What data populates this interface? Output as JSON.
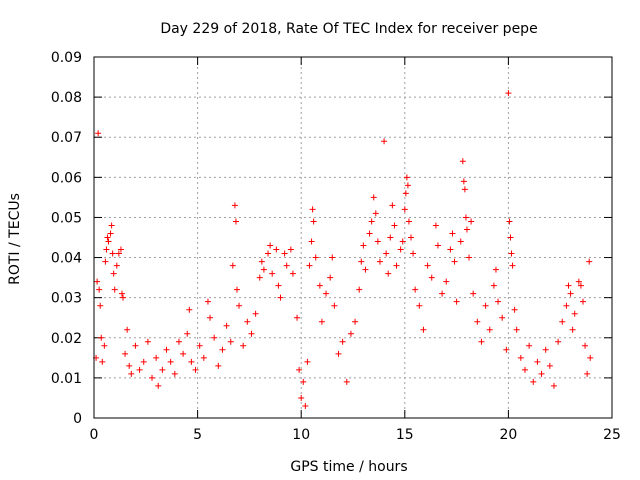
{
  "chart_data": {
    "type": "scatter",
    "title": "Day 229 of 2018, Rate Of TEC Index for receiver pepe",
    "xlabel": "GPS time / hours",
    "ylabel": "ROTI / TECUs",
    "xlim": [
      0,
      25
    ],
    "ylim": [
      0,
      0.09
    ],
    "xticks": [
      0,
      5,
      10,
      15,
      20,
      25
    ],
    "yticks": [
      0,
      0.01,
      0.02,
      0.03,
      0.04,
      0.05,
      0.06,
      0.07,
      0.08,
      0.09
    ],
    "xtick_labels": [
      "0",
      "5",
      "10",
      "15",
      "20",
      "25"
    ],
    "ytick_labels": [
      "0",
      "0.01",
      "0.02",
      "0.03",
      "0.04",
      "0.05",
      "0.06",
      "0.07",
      "0.08",
      "0.09"
    ],
    "grid": true,
    "marker": "+",
    "color": "#ff0000",
    "series": [
      {
        "points": [
          [
            0.1,
            0.015
          ],
          [
            0.15,
            0.034
          ],
          [
            0.2,
            0.071
          ],
          [
            0.25,
            0.032
          ],
          [
            0.3,
            0.028
          ],
          [
            0.35,
            0.02
          ],
          [
            0.4,
            0.014
          ],
          [
            0.5,
            0.018
          ],
          [
            0.55,
            0.039
          ],
          [
            0.6,
            0.042
          ],
          [
            0.65,
            0.045
          ],
          [
            0.7,
            0.044
          ],
          [
            0.8,
            0.046
          ],
          [
            0.85,
            0.048
          ],
          [
            0.9,
            0.041
          ],
          [
            0.95,
            0.036
          ],
          [
            1.0,
            0.032
          ],
          [
            1.1,
            0.038
          ],
          [
            1.2,
            0.041
          ],
          [
            1.3,
            0.042
          ],
          [
            1.35,
            0.031
          ],
          [
            1.4,
            0.03
          ],
          [
            1.5,
            0.016
          ],
          [
            1.6,
            0.022
          ],
          [
            1.7,
            0.013
          ],
          [
            1.8,
            0.011
          ],
          [
            2.0,
            0.018
          ],
          [
            2.2,
            0.012
          ],
          [
            2.4,
            0.014
          ],
          [
            2.6,
            0.019
          ],
          [
            2.8,
            0.01
          ],
          [
            3.0,
            0.015
          ],
          [
            3.1,
            0.008
          ],
          [
            3.3,
            0.012
          ],
          [
            3.5,
            0.017
          ],
          [
            3.7,
            0.014
          ],
          [
            3.9,
            0.011
          ],
          [
            4.1,
            0.019
          ],
          [
            4.3,
            0.016
          ],
          [
            4.5,
            0.021
          ],
          [
            4.6,
            0.027
          ],
          [
            4.7,
            0.014
          ],
          [
            4.9,
            0.012
          ],
          [
            5.1,
            0.018
          ],
          [
            5.3,
            0.015
          ],
          [
            5.5,
            0.029
          ],
          [
            5.6,
            0.025
          ],
          [
            5.8,
            0.02
          ],
          [
            6.0,
            0.013
          ],
          [
            6.2,
            0.017
          ],
          [
            6.4,
            0.023
          ],
          [
            6.6,
            0.019
          ],
          [
            6.7,
            0.038
          ],
          [
            6.8,
            0.053
          ],
          [
            6.85,
            0.049
          ],
          [
            6.9,
            0.032
          ],
          [
            7.0,
            0.028
          ],
          [
            7.2,
            0.018
          ],
          [
            7.4,
            0.024
          ],
          [
            7.6,
            0.021
          ],
          [
            7.8,
            0.026
          ],
          [
            8.0,
            0.035
          ],
          [
            8.1,
            0.039
          ],
          [
            8.2,
            0.037
          ],
          [
            8.4,
            0.041
          ],
          [
            8.5,
            0.043
          ],
          [
            8.6,
            0.036
          ],
          [
            8.8,
            0.042
          ],
          [
            8.9,
            0.033
          ],
          [
            9.0,
            0.03
          ],
          [
            9.2,
            0.041
          ],
          [
            9.3,
            0.038
          ],
          [
            9.5,
            0.042
          ],
          [
            9.6,
            0.036
          ],
          [
            9.8,
            0.025
          ],
          [
            9.9,
            0.012
          ],
          [
            10.0,
            0.005
          ],
          [
            10.1,
            0.009
          ],
          [
            10.2,
            0.003
          ],
          [
            10.3,
            0.014
          ],
          [
            10.4,
            0.038
          ],
          [
            10.5,
            0.044
          ],
          [
            10.55,
            0.052
          ],
          [
            10.6,
            0.049
          ],
          [
            10.7,
            0.04
          ],
          [
            10.9,
            0.033
          ],
          [
            11.0,
            0.024
          ],
          [
            11.2,
            0.031
          ],
          [
            11.4,
            0.035
          ],
          [
            11.5,
            0.04
          ],
          [
            11.6,
            0.028
          ],
          [
            11.8,
            0.016
          ],
          [
            12.0,
            0.019
          ],
          [
            12.2,
            0.009
          ],
          [
            12.4,
            0.021
          ],
          [
            12.6,
            0.024
          ],
          [
            12.8,
            0.032
          ],
          [
            12.9,
            0.039
          ],
          [
            13.0,
            0.043
          ],
          [
            13.1,
            0.037
          ],
          [
            13.3,
            0.046
          ],
          [
            13.4,
            0.049
          ],
          [
            13.5,
            0.055
          ],
          [
            13.6,
            0.051
          ],
          [
            13.7,
            0.044
          ],
          [
            13.8,
            0.039
          ],
          [
            14.0,
            0.069
          ],
          [
            14.1,
            0.041
          ],
          [
            14.2,
            0.036
          ],
          [
            14.3,
            0.045
          ],
          [
            14.4,
            0.053
          ],
          [
            14.5,
            0.048
          ],
          [
            14.6,
            0.038
          ],
          [
            14.8,
            0.042
          ],
          [
            14.9,
            0.044
          ],
          [
            15.0,
            0.052
          ],
          [
            15.05,
            0.056
          ],
          [
            15.1,
            0.06
          ],
          [
            15.15,
            0.058
          ],
          [
            15.2,
            0.049
          ],
          [
            15.3,
            0.045
          ],
          [
            15.4,
            0.041
          ],
          [
            15.5,
            0.032
          ],
          [
            15.7,
            0.028
          ],
          [
            15.9,
            0.022
          ],
          [
            16.1,
            0.038
          ],
          [
            16.3,
            0.035
          ],
          [
            16.5,
            0.048
          ],
          [
            16.6,
            0.043
          ],
          [
            16.8,
            0.031
          ],
          [
            17.0,
            0.034
          ],
          [
            17.2,
            0.042
          ],
          [
            17.3,
            0.046
          ],
          [
            17.4,
            0.039
          ],
          [
            17.5,
            0.029
          ],
          [
            17.7,
            0.044
          ],
          [
            17.8,
            0.064
          ],
          [
            17.85,
            0.059
          ],
          [
            17.9,
            0.057
          ],
          [
            17.95,
            0.05
          ],
          [
            18.0,
            0.047
          ],
          [
            18.1,
            0.04
          ],
          [
            18.2,
            0.049
          ],
          [
            18.3,
            0.031
          ],
          [
            18.5,
            0.024
          ],
          [
            18.7,
            0.019
          ],
          [
            18.9,
            0.028
          ],
          [
            19.1,
            0.022
          ],
          [
            19.3,
            0.033
          ],
          [
            19.4,
            0.037
          ],
          [
            19.5,
            0.029
          ],
          [
            19.7,
            0.025
          ],
          [
            19.9,
            0.017
          ],
          [
            20.0,
            0.081
          ],
          [
            20.05,
            0.049
          ],
          [
            20.1,
            0.045
          ],
          [
            20.15,
            0.041
          ],
          [
            20.2,
            0.038
          ],
          [
            20.3,
            0.027
          ],
          [
            20.4,
            0.022
          ],
          [
            20.6,
            0.015
          ],
          [
            20.8,
            0.012
          ],
          [
            21.0,
            0.018
          ],
          [
            21.2,
            0.009
          ],
          [
            21.4,
            0.014
          ],
          [
            21.6,
            0.011
          ],
          [
            21.8,
            0.017
          ],
          [
            22.0,
            0.013
          ],
          [
            22.2,
            0.008
          ],
          [
            22.4,
            0.019
          ],
          [
            22.6,
            0.024
          ],
          [
            22.8,
            0.028
          ],
          [
            22.9,
            0.033
          ],
          [
            23.0,
            0.031
          ],
          [
            23.1,
            0.022
          ],
          [
            23.2,
            0.026
          ],
          [
            23.4,
            0.034
          ],
          [
            23.5,
            0.033
          ],
          [
            23.6,
            0.029
          ],
          [
            23.7,
            0.018
          ],
          [
            23.8,
            0.011
          ],
          [
            23.9,
            0.039
          ],
          [
            23.95,
            0.015
          ]
        ]
      }
    ]
  }
}
